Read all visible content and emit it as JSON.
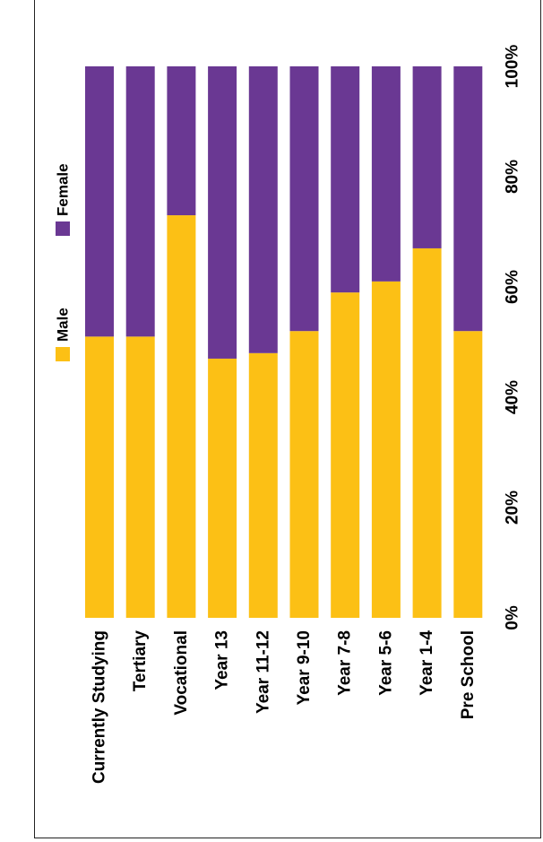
{
  "chart_data": {
    "type": "bar",
    "orientation": "horizontal-stacked-100-percent",
    "categories": [
      "Currently Studying",
      "Tertiary",
      "Vocational",
      "Year 13",
      "Year 11-12",
      "Year 9-10",
      "Year 7-8",
      "Year 5-6",
      "Year 1-4",
      "Pre School"
    ],
    "series": [
      {
        "name": "Male",
        "color": "#FCC015",
        "values": [
          51,
          51,
          73,
          47,
          48,
          52,
          59,
          61,
          67,
          52
        ]
      },
      {
        "name": "Female",
        "color": "#6A3893",
        "values": [
          49,
          49,
          27,
          53,
          52,
          48,
          41,
          39,
          33,
          48
        ]
      }
    ],
    "title": "",
    "xlabel": "",
    "ylabel": "",
    "xlim": [
      0,
      100
    ],
    "ticks": [
      "0%",
      "20%",
      "40%",
      "60%",
      "80%",
      "100%"
    ],
    "legend_position": "top",
    "grid": false
  }
}
